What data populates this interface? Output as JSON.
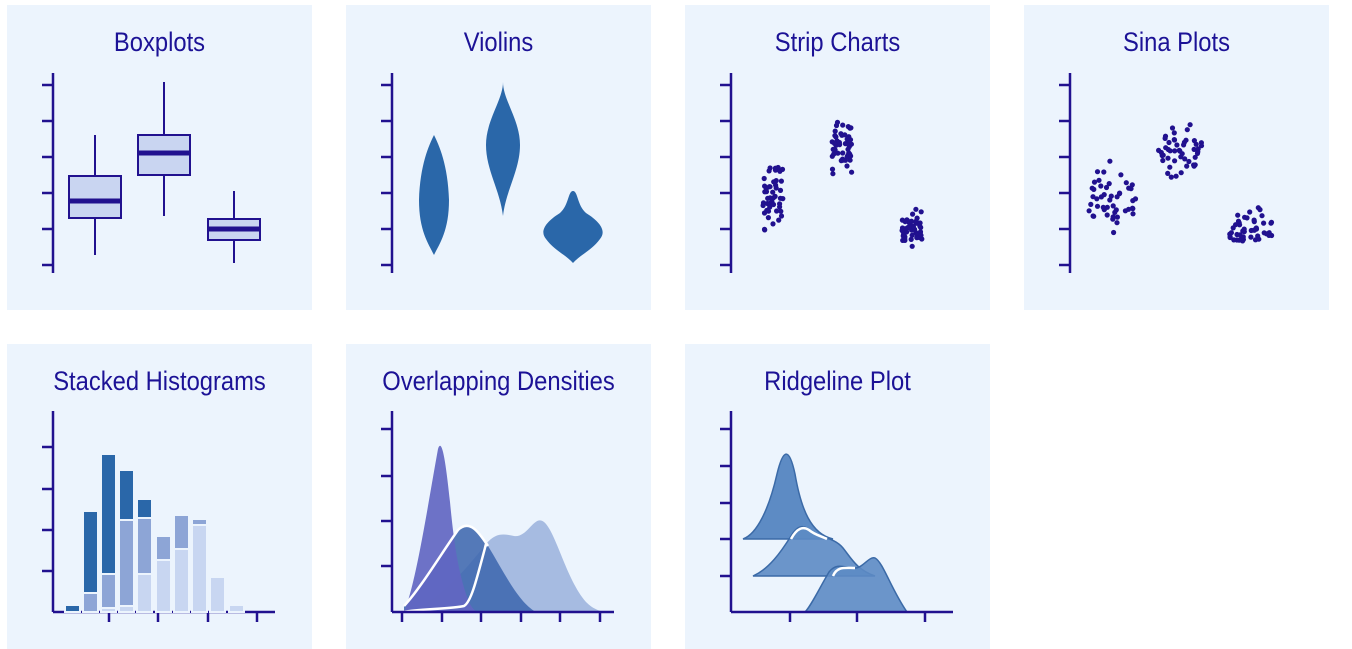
{
  "colors": {
    "panel_bg": "#ecf4fd",
    "axis": "#21118f",
    "title": "#1c1296",
    "box_fill": "#c9d5f1",
    "violin_fill": "#2a67a9",
    "point": "#21118f",
    "hist_dark": "#2a67a9",
    "hist_mid": "#8da5d6",
    "hist_light": "#c8d6f1",
    "density_1": "#6266c2",
    "density_2": "#3f68ae",
    "density_3": "#a6bbe1",
    "ridge_fill": "#5d8bc4",
    "ridge_stroke": "#3b6aa7"
  },
  "panels": [
    {
      "id": "boxplots",
      "title": "Boxplots"
    },
    {
      "id": "violins",
      "title": "Violins"
    },
    {
      "id": "strip",
      "title": "Strip Charts"
    },
    {
      "id": "sina",
      "title": "Sina Plots"
    },
    {
      "id": "histograms",
      "title": "Stacked Histograms"
    },
    {
      "id": "densities",
      "title": "Overlapping Densities"
    },
    {
      "id": "ridgeline",
      "title": "Ridgeline Plot"
    }
  ]
}
